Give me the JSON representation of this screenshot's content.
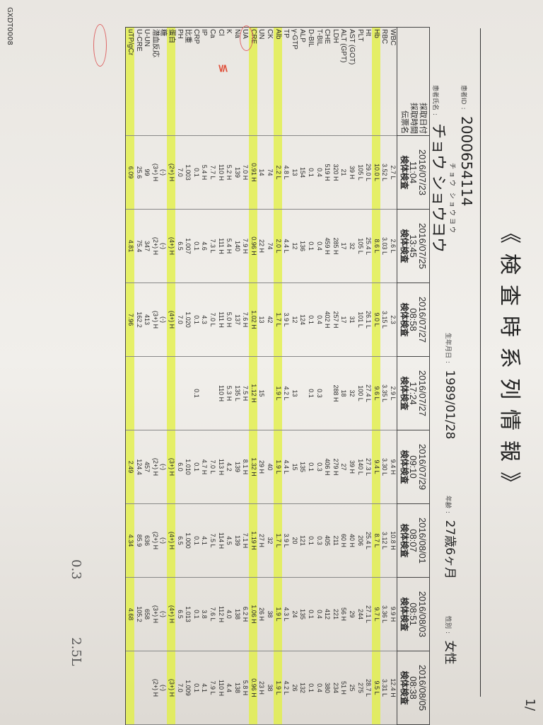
{
  "document": {
    "title": "《検査時系列情報》",
    "page": "1/",
    "footer_code": "GXDT0008",
    "patient": {
      "id_label": "患者ID",
      "id": "2000654114",
      "name_label": "患者氏名",
      "name": "チョウ ショウヨウ",
      "name_furigana": "チョウ ショウヨウ",
      "dob_label": "生年月日",
      "dob": "1989/01/28",
      "age_label": "年齢",
      "age": "27歳6ヶ月",
      "sex_label": "性別",
      "sex": "女性"
    },
    "header_labels": [
      "採取日付",
      "採取時間",
      "伝票名"
    ],
    "columns": [
      {
        "date": "2016/07/23",
        "time": "11:04",
        "type": "検体検査"
      },
      {
        "date": "2016/07/25",
        "time": "13:45",
        "type": "検体検査"
      },
      {
        "date": "2016/07/27",
        "time": "08:58",
        "type": "検体検査"
      },
      {
        "date": "2016/07/27",
        "time": "17:24",
        "type": "検体検査"
      },
      {
        "date": "2016/07/29",
        "time": "09:10",
        "type": "検体検査"
      },
      {
        "date": "2016/08/01",
        "time": "08:07",
        "type": "検体検査"
      },
      {
        "date": "2016/08/03",
        "time": "08:51",
        "type": "検体検査"
      },
      {
        "date": "2016/08/05",
        "time": "08:38",
        "type": "検体検査"
      }
    ],
    "highlight_color": "#e1f03c",
    "rows": [
      {
        "label": "WBC",
        "values": [
          "2.7 L",
          "2.6 L",
          "2.3",
          "2.9 L",
          "9.4 H",
          "10.8 H",
          "9.9 H",
          "12.4 H"
        ]
      },
      {
        "label": "RBC",
        "values": [
          "3.52 L",
          "3.03 L",
          "3.15 L",
          "3.35 L",
          "3.30 L",
          "3.12 L",
          "3.36 L",
          "3.31 L"
        ]
      },
      {
        "label": "Hb",
        "highlight": true,
        "values": [
          "10.0 L",
          "8.6 L",
          "9.0 L",
          "9.6 L",
          "9.4 L",
          "8.7 L",
          "9.7 L",
          "9.5 L"
        ]
      },
      {
        "label": "Ht",
        "values": [
          "29.0 L",
          "25.4 L",
          "26.1 L",
          "27.4 L",
          "27.3 L",
          "25.4 L",
          "27.1 L",
          "28.7 L"
        ]
      },
      {
        "label": "PLT",
        "values": [
          "105 L",
          "105 L",
          "101 L",
          "100 L",
          "140 L",
          "206",
          "244",
          "275"
        ]
      },
      {
        "label": "AST (GOT)",
        "values": [
          "39 H",
          "32",
          "31",
          "32",
          "39 H",
          "40 H",
          "29",
          "25"
        ]
      },
      {
        "label": "ALT (GPT)",
        "values": [
          "21",
          "17",
          "17",
          "18",
          "27",
          "60 H",
          "56 H",
          "51 H"
        ]
      },
      {
        "label": "LDH",
        "values": [
          "320 H",
          "285 H",
          "257 H",
          "288 H",
          "279 H",
          "211",
          "221",
          "234"
        ]
      },
      {
        "label": "CHE",
        "values": [
          "519 H",
          "459 H",
          "402 H",
          "",
          "406 H",
          "405",
          "412",
          "380"
        ]
      },
      {
        "label": "T-BIL",
        "values": [
          "0.4",
          "0.4",
          "0.4",
          "0.3",
          "0.3",
          "0.3",
          "0.4",
          "0.4"
        ]
      },
      {
        "label": "D-BIL",
        "values": [
          "0.1",
          "0.1",
          "0.1",
          "0.1",
          "0.1",
          "0.1",
          "0.1",
          "0.1"
        ]
      },
      {
        "label": "ALP",
        "values": [
          "154",
          "136",
          "124",
          "",
          "135",
          "121",
          "135",
          "132"
        ]
      },
      {
        "label": "γ-GTP",
        "values": [
          "13",
          "12",
          "12",
          "13",
          "15",
          "20",
          "24",
          "26"
        ]
      },
      {
        "label": "TP",
        "values": [
          "4.8 L",
          "4.4 L",
          "3.9 L",
          "4.2 L",
          "4.4 L",
          "3.9 L",
          "4.3 L",
          "4.2 L"
        ]
      },
      {
        "label": "Alb",
        "highlight": true,
        "circled": true,
        "values": [
          "2.2 L",
          "2.0 L",
          "1.7 L",
          "1.9 L",
          "1.9 L",
          "1.7 L",
          "1.9 L",
          "1.9 L"
        ]
      },
      {
        "label": "CK",
        "values": [
          "74",
          "74",
          "42",
          "",
          "40",
          "32",
          "38",
          "38"
        ]
      },
      {
        "label": "UN",
        "values": [
          "14",
          "22 H",
          "13",
          "15",
          "29 H",
          "27 H",
          "26 H",
          "23 H"
        ]
      },
      {
        "label": "CRE",
        "highlight": true,
        "values": [
          "0.91 H",
          "0.96 H",
          "1.02 H",
          "1.12 H",
          "1.32 H",
          "1.19 H",
          "1.06 H",
          "0.96 H"
        ]
      },
      {
        "label": "UA",
        "values": [
          "7.0 H",
          "7.9 H",
          "7.6 H",
          "7.5 H",
          "8.1 H",
          "7.1 H",
          "6.2 H",
          "5.8 H"
        ]
      },
      {
        "label": "Na",
        "values": [
          "139",
          "140",
          "137",
          "135 L",
          "139",
          "139",
          "138",
          "138"
        ]
      },
      {
        "label": "K",
        "values": [
          "5.2 H",
          "5.4 H",
          "5.0 H",
          "5.3 H",
          "4.2",
          "4.5",
          "4.0",
          "4.4"
        ]
      },
      {
        "label": "Cl",
        "values": [
          "110 H",
          "111 H",
          "111 H",
          "110 H",
          "113 H",
          "114 H",
          "112 H",
          "110 H"
        ]
      },
      {
        "label": "Ca",
        "values": [
          "7.7 L",
          "7.3 L",
          "7.0 L",
          "",
          "7.0 L",
          "7.5 L",
          "7.6 L",
          "7.9 L"
        ]
      },
      {
        "label": "IP",
        "values": [
          "5.4 H",
          "4.6",
          "4.3",
          "",
          "4.7 H",
          "4.1",
          "3.8",
          "4.1"
        ]
      },
      {
        "label": "CRP",
        "values": [
          "0.1",
          "0.1",
          "0.1",
          "0.1",
          "0.1",
          "0.1",
          "0.1",
          "0.1"
        ]
      },
      {
        "label": "比重",
        "values": [
          "1.003",
          "1.007",
          "1.020",
          "",
          "1.010",
          "1.000",
          "1.013",
          "1.009"
        ]
      },
      {
        "label": "PH",
        "values": [
          "7.0",
          "6.5",
          "7.0",
          "",
          "6.0",
          "6.5",
          "6.5",
          "7.0"
        ]
      },
      {
        "label": "蛋白",
        "highlight": true,
        "values": [
          "(2+) H",
          "(4+) H",
          "(4+) H",
          "",
          "(3+) H",
          "(4+) H",
          "(4+) H",
          "(3+) H"
        ]
      },
      {
        "label": "糖",
        "values": [
          "(-)",
          "(-)",
          "(-)",
          "",
          "(-)",
          "(-)",
          "(-)",
          "(-)"
        ]
      },
      {
        "label": "潜血反応",
        "values": [
          "(3+) H",
          "(2+) H",
          "(3+) H",
          "",
          "(2+) H",
          "(2+) H",
          "(3+) H",
          "(2+) H"
        ]
      },
      {
        "label": "U-UN",
        "values": [
          "99",
          "347",
          "413",
          "",
          "457",
          "636",
          "658",
          ""
        ]
      },
      {
        "label": "U-CRE",
        "values": [
          "25.6",
          "75.4",
          "162.2",
          "",
          "124.4",
          "85.9",
          "105.2",
          ""
        ]
      },
      {
        "label": "uTP/gCr",
        "highlight": true,
        "circled": true,
        "values": [
          "6.09",
          "4.81",
          "7.96",
          "",
          "2.49",
          "4.34",
          "4.68",
          ""
        ]
      }
    ],
    "handwritten": {
      "alb_note": "2.5L",
      "utp_note": "0.3"
    }
  }
}
